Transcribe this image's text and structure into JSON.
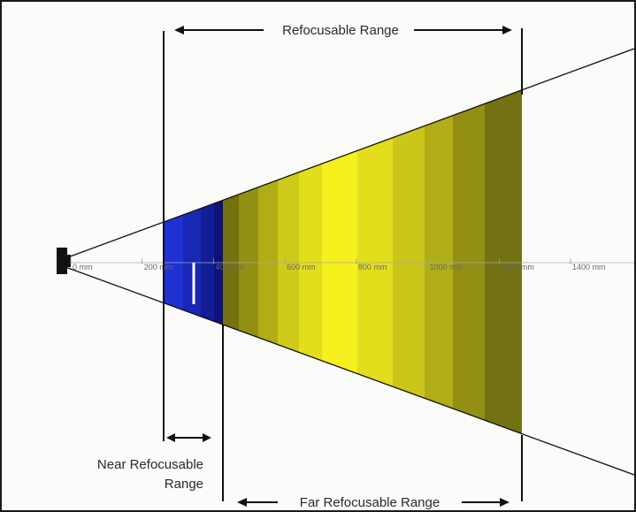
{
  "labels": {
    "refocusable_range": "Refocusable Range",
    "near_refocusable_range_line1": "Near Refocusable",
    "near_refocusable_range_line2": "Range",
    "far_refocusable_range": "Far Refocusable Range"
  },
  "axis": {
    "unit": "mm",
    "ticks": [
      {
        "value": 0,
        "label": "0 mm"
      },
      {
        "value": 200,
        "label": "200 mm"
      },
      {
        "value": 400,
        "label": "400 mm"
      },
      {
        "value": 600,
        "label": "600 mm"
      },
      {
        "value": 800,
        "label": "800 mm"
      },
      {
        "value": 1000,
        "label": "1000 mm"
      },
      {
        "value": 1200,
        "label": "1200 mm"
      },
      {
        "value": 1400,
        "label": "1400 mm"
      }
    ]
  },
  "colors": {
    "near_band": "#1e32d2",
    "far_band_light": "#f5f01e",
    "far_band_dark": "#5c5a0f",
    "outline": "#111111",
    "background": "#fbfbfa"
  }
}
